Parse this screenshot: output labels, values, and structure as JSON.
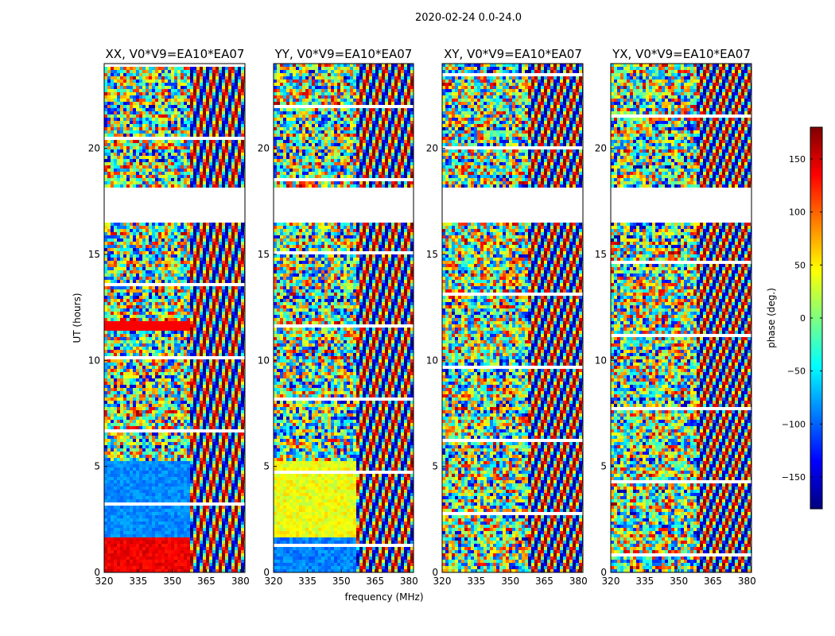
{
  "chart_data": {
    "type": "heatmap",
    "title": "2020-02-24 0.0-24.0",
    "xlabel": "frequency (MHz)",
    "ylabel": "UT (hours)",
    "xlim": [
      320,
      382
    ],
    "ylim": [
      0,
      24
    ],
    "xticks": [
      320,
      335,
      350,
      365,
      380
    ],
    "yticks": [
      0,
      5,
      10,
      15,
      20
    ],
    "colorbar": {
      "label": "phase (deg.)",
      "range": [
        -180,
        180
      ],
      "ticks": [
        150,
        100,
        50,
        0,
        -50,
        -100,
        -150
      ],
      "tick_labels": [
        "150",
        "100",
        "50",
        "0",
        "−50",
        "−100",
        "−150"
      ]
    },
    "panels": [
      {
        "name": "XX, V0*V9=EA10*EA07"
      },
      {
        "name": "YY, V0*V9=EA10*EA07"
      },
      {
        "name": "XY, V0*V9=EA10*EA07"
      },
      {
        "name": "YX, V0*V9=EA10*EA07"
      }
    ],
    "gaps_hours": [
      [
        16.5,
        18.1
      ]
    ]
  },
  "colors": {
    "jet": [
      "#00007f",
      "#0000ff",
      "#007fff",
      "#00ffff",
      "#7fff7f",
      "#ffff00",
      "#ff7f00",
      "#ff0000",
      "#7f0000"
    ]
  }
}
